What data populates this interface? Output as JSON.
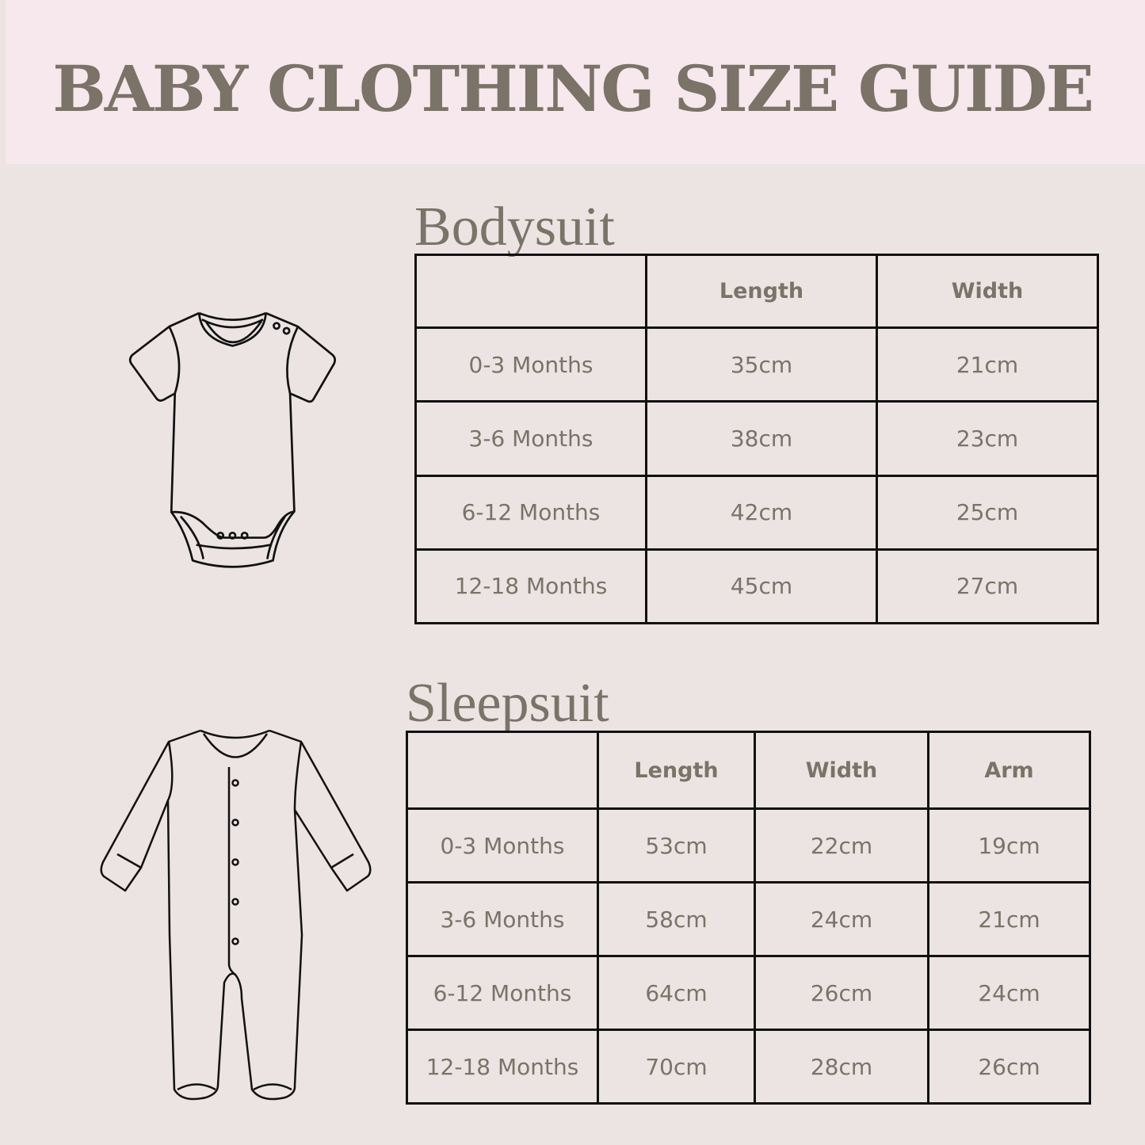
{
  "title": "BABY CLOTHING SIZE GUIDE",
  "colors": {
    "header_bg": "#f6e8ec",
    "page_bg": "#ece3e3",
    "text": "#7b7268",
    "border": "#111111"
  },
  "bodysuit": {
    "title": "Bodysuit",
    "icon": "bodysuit-icon",
    "headers": [
      "",
      "Length",
      "Width"
    ],
    "rows": [
      [
        "0-3 Months",
        "35cm",
        "21cm"
      ],
      [
        "3-6 Months",
        "38cm",
        "23cm"
      ],
      [
        "6-12 Months",
        "42cm",
        "25cm"
      ],
      [
        "12-18 Months",
        "45cm",
        "27cm"
      ]
    ]
  },
  "sleepsuit": {
    "title": "Sleepsuit",
    "icon": "sleepsuit-icon",
    "headers": [
      "",
      "Length",
      "Width",
      "Arm"
    ],
    "rows": [
      [
        "0-3 Months",
        "53cm",
        "22cm",
        "19cm"
      ],
      [
        "3-6 Months",
        "58cm",
        "24cm",
        "21cm"
      ],
      [
        "6-12 Months",
        "64cm",
        "26cm",
        "24cm"
      ],
      [
        "12-18 Months",
        "70cm",
        "28cm",
        "26cm"
      ]
    ]
  }
}
